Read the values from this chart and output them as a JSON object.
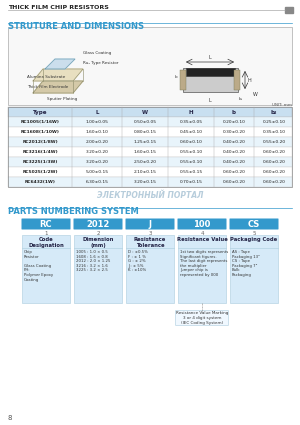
{
  "title_header": "THICK FILM CHIP RESISTORS",
  "section1_title": "STRUTURE AND DIMENSIONS",
  "section2_title": "PARTS NUMBERING SYSTEM",
  "watermark": "ЭЛЕКТРОННЫЙ ПОРТАЛ",
  "table_headers": [
    "Type",
    "L",
    "W",
    "H",
    "b",
    "b₂"
  ],
  "table_rows": [
    [
      "RC1005(1/16W)",
      "1.00±0.05",
      "0.50±0.05",
      "0.35±0.05",
      "0.20±0.10",
      "0.25±0.10"
    ],
    [
      "RC1608(1/10W)",
      "1.60±0.10",
      "0.80±0.15",
      "0.45±0.10",
      "0.30±0.20",
      "0.35±0.10"
    ],
    [
      "RC2012(1/8W)",
      "2.00±0.20",
      "1.25±0.15",
      "0.60±0.10",
      "0.40±0.20",
      "0.55±0.20"
    ],
    [
      "RC3216(1/4W)",
      "3.20±0.20",
      "1.60±0.15",
      "0.55±0.10",
      "0.40±0.20",
      "0.60±0.20"
    ],
    [
      "RC3225(1/3W)",
      "3.20±0.20",
      "2.50±0.20",
      "0.55±0.10",
      "0.40±0.20",
      "0.60±0.20"
    ],
    [
      "RC5025(1/2W)",
      "5.00±0.15",
      "2.10±0.15",
      "0.55±0.15",
      "0.60±0.20",
      "0.60±0.20"
    ],
    [
      "RC6432(1W)",
      "6.30±0.15",
      "3.20±0.15",
      "0.70±0.15",
      "0.60±0.20",
      "0.60±0.20"
    ]
  ],
  "unit_label": "UNIT: mm",
  "pns_boxes": [
    "RC",
    "2012",
    "J",
    "100",
    "CS"
  ],
  "pns_numbers": [
    "1",
    "2",
    "3",
    "4",
    "5"
  ],
  "pns_titles": [
    "Code\nDesignation",
    "Dimension\n(mm)",
    "Resistance\nTolerance",
    "Resistance Value",
    "Packaging Code"
  ],
  "pns_descriptions": [
    "Chip\nResistor\n\nGlass Coating\nPH:\nPolymer Epoxy\nCoating",
    "1005 : 1.0 × 0.5\n1608 : 1.6 × 0.8\n2012 : 2.0 × 1.25\n3216 : 3.2 × 1.6\n3225 : 3.2 × 2.5",
    "D : ±0.5%\nF : ± 1 %\nG : ± 2%\nJ : ± 5%\nK : ±10%",
    "1st two digits represents\nSignificant figures.\nThe last digit represents\nthe multiplier\nJumper chip is\nrepresented by 000",
    "AS : Tape\nPackaging 13\"\nCS : Tape\nPackaging 7\"\nBulk\nPackaging"
  ],
  "resistance_note": "Resistance Value Marking\n3 or 4 digit system\n(IEC Coding System)",
  "header_bg": "#4a4a4a",
  "header_text": "#ffffff",
  "section_color": "#3399cc",
  "table_header_bg": "#c8dff0",
  "table_row_alt": "#e8f4fb",
  "table_row_white": "#ffffff",
  "box_bg": "#3399cc",
  "box_text": "#ffffff",
  "detail_bg": "#d6eaf8",
  "detail_border": "#aaccdd",
  "page_bg": "#ffffff",
  "footer_num": "8"
}
